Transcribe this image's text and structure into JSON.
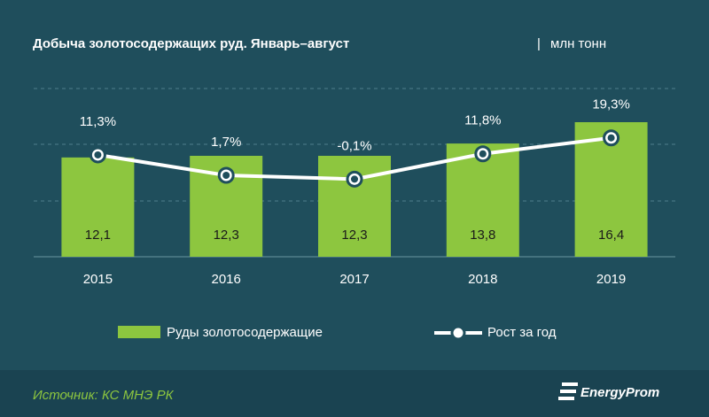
{
  "chart_data": {
    "type": "bar-line",
    "title": "Добыча золотосодержащих руд. Январь–август",
    "subtitle": "млн тонн",
    "categories": [
      "2015",
      "2016",
      "2017",
      "2018",
      "2019"
    ],
    "series": [
      {
        "name": "Руды золотосодержащие",
        "color": "#8dc63f",
        "values": [
          12.1,
          12.3,
          12.3,
          13.8,
          16.4
        ],
        "value_labels": [
          "12,1",
          "12,3",
          "12,3",
          "13,8",
          "16,4"
        ]
      },
      {
        "name": "Рост за год",
        "color": "#ffffff",
        "axis": "y2",
        "values": [
          11.3,
          1.7,
          -0.1,
          11.8,
          19.3
        ],
        "value_labels": [
          "11,3%",
          "1,7%",
          "-0,1%",
          "11,8%",
          "19,3%"
        ]
      }
    ],
    "ylim": [
      0,
      20.5
    ],
    "y2lim": [
      -36.6,
      42.5
    ],
    "source": "Источник: КС МНЭ РК",
    "logo": "EnergyProm"
  }
}
